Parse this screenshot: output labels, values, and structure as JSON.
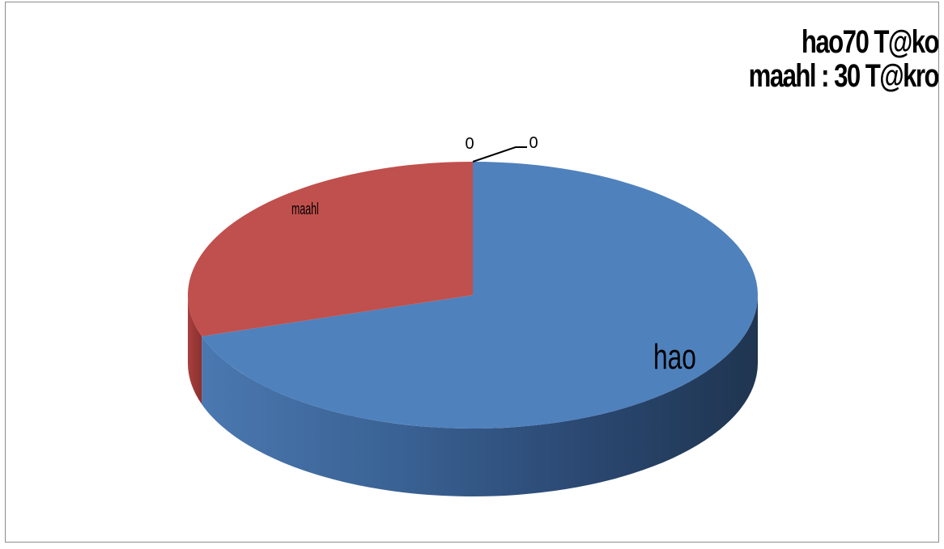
{
  "chart_data": {
    "type": "pie",
    "title_lines": [
      "hao70 T@ko",
      "maahl : 30 T@kro"
    ],
    "slices": [
      {
        "label": "hao",
        "value": 70,
        "color": "#4f81bd"
      },
      {
        "label": "maahl",
        "value": 30,
        "color": "#c0504d"
      },
      {
        "label": "0",
        "value": 0,
        "color": "#9bbb59"
      },
      {
        "label": "0",
        "value": 0,
        "color": "#8064a2"
      }
    ],
    "legend": "none"
  }
}
